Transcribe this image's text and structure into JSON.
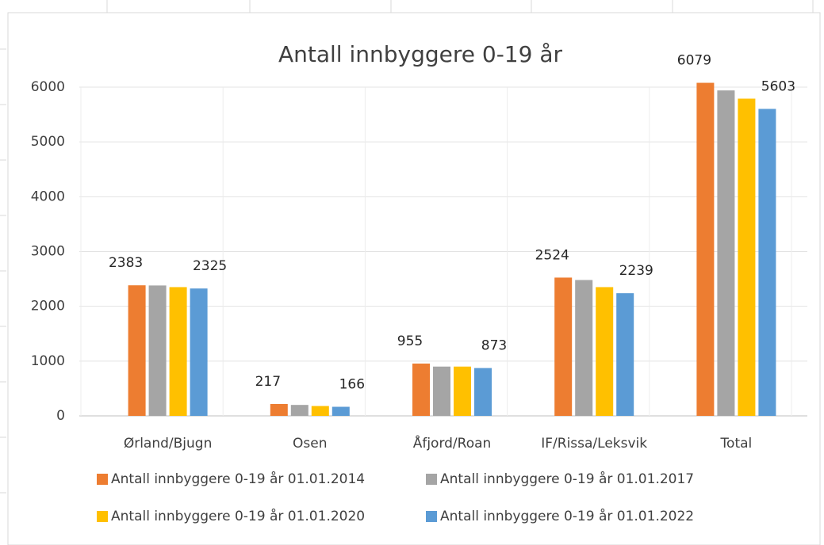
{
  "chart_data": {
    "type": "bar",
    "title": "Antall innbyggere 0-19 år",
    "categories": [
      "Ørland/Bjugn",
      "Osen",
      "Åfjord/Roan",
      "IF/Rissa/Leksvik",
      "Total"
    ],
    "series": [
      {
        "name": "Antall innbyggere 0-19 år 01.01.2014",
        "color": "#ed7d31",
        "values": [
          2383,
          217,
          955,
          2524,
          6079
        ],
        "show_labels": true
      },
      {
        "name": "Antall innbyggere 0-19 år 01.01.2017",
        "color": "#a5a5a5",
        "values": [
          2380,
          200,
          900,
          2480,
          5940
        ],
        "show_labels": false
      },
      {
        "name": "Antall innbyggere 0-19 år 01.01.2020",
        "color": "#ffc000",
        "values": [
          2350,
          180,
          900,
          2350,
          5790
        ],
        "show_labels": false
      },
      {
        "name": "Antall innbyggere 0-19 år 01.01.2022",
        "color": "#5b9bd5",
        "values": [
          2325,
          166,
          873,
          2239,
          5603
        ],
        "show_labels": true
      }
    ],
    "ylim": [
      0,
      6000
    ],
    "yticks": [
      0,
      1000,
      2000,
      3000,
      4000,
      5000,
      6000
    ],
    "grid": true,
    "legend": "bottom"
  }
}
